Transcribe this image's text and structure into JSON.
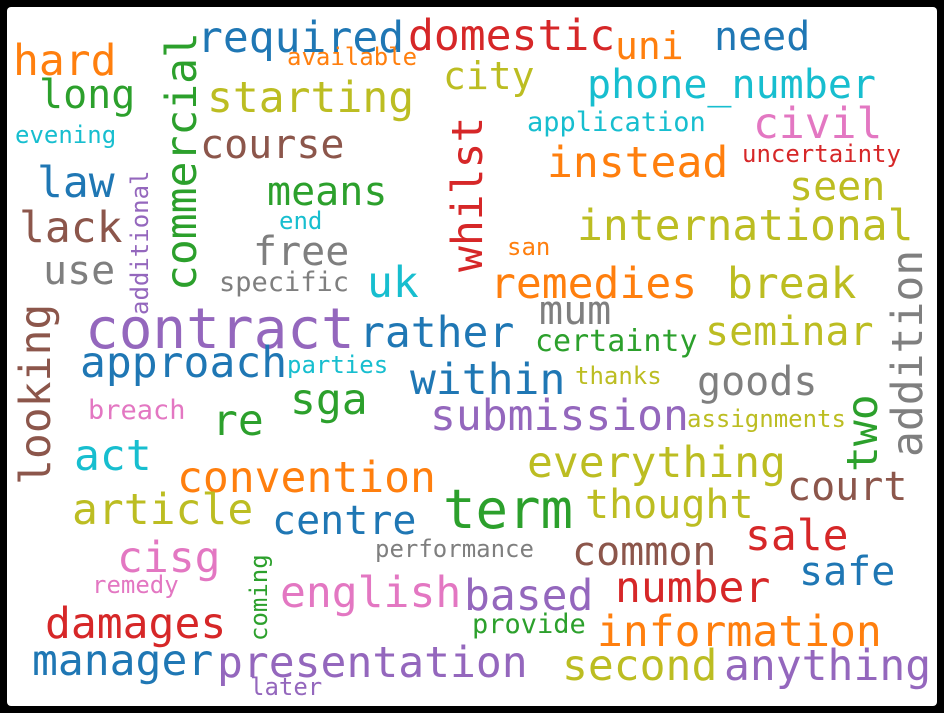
{
  "words": [
    {
      "text": "required",
      "color": "#1f77b4"
    },
    {
      "text": "domestic",
      "color": "#d62728"
    },
    {
      "text": "uni",
      "color": "#ff7f0e"
    },
    {
      "text": "need",
      "color": "#1f77b4"
    },
    {
      "text": "hard",
      "color": "#ff7f0e"
    },
    {
      "text": "available",
      "color": "#ff7f0e"
    },
    {
      "text": "city",
      "color": "#bcbd22"
    },
    {
      "text": "phone_number",
      "color": "#17becf"
    },
    {
      "text": "long",
      "color": "#2ca02c"
    },
    {
      "text": "starting",
      "color": "#bcbd22"
    },
    {
      "text": "application",
      "color": "#17becf"
    },
    {
      "text": "civil",
      "color": "#e377c2"
    },
    {
      "text": "evening",
      "color": "#17becf"
    },
    {
      "text": "course",
      "color": "#8c564b"
    },
    {
      "text": "uncertainty",
      "color": "#d62728"
    },
    {
      "text": "instead",
      "color": "#ff7f0e"
    },
    {
      "text": "law",
      "color": "#1f77b4"
    },
    {
      "text": "means",
      "color": "#2ca02c"
    },
    {
      "text": "seen",
      "color": "#bcbd22"
    },
    {
      "text": "end",
      "color": "#17becf"
    },
    {
      "text": "lack",
      "color": "#8c564b"
    },
    {
      "text": "free",
      "color": "#7f7f7f"
    },
    {
      "text": "international",
      "color": "#bcbd22"
    },
    {
      "text": "san",
      "color": "#ff7f0e"
    },
    {
      "text": "use",
      "color": "#7f7f7f"
    },
    {
      "text": "specific",
      "color": "#7f7f7f"
    },
    {
      "text": "uk",
      "color": "#17becf"
    },
    {
      "text": "remedies",
      "color": "#ff7f0e"
    },
    {
      "text": "break",
      "color": "#bcbd22"
    },
    {
      "text": "contract",
      "color": "#9467bd"
    },
    {
      "text": "mum",
      "color": "#7f7f7f"
    },
    {
      "text": "rather",
      "color": "#1f77b4"
    },
    {
      "text": "seminar",
      "color": "#bcbd22"
    },
    {
      "text": "certainty",
      "color": "#2ca02c"
    },
    {
      "text": "approach",
      "color": "#1f77b4"
    },
    {
      "text": "parties",
      "color": "#17becf"
    },
    {
      "text": "within",
      "color": "#1f77b4"
    },
    {
      "text": "thanks",
      "color": "#bcbd22"
    },
    {
      "text": "goods",
      "color": "#7f7f7f"
    },
    {
      "text": "sga",
      "color": "#2ca02c"
    },
    {
      "text": "breach",
      "color": "#e377c2"
    },
    {
      "text": "re",
      "color": "#2ca02c"
    },
    {
      "text": "submission",
      "color": "#9467bd"
    },
    {
      "text": "assignments",
      "color": "#bcbd22"
    },
    {
      "text": "act",
      "color": "#17becf"
    },
    {
      "text": "everything",
      "color": "#bcbd22"
    },
    {
      "text": "convention",
      "color": "#ff7f0e"
    },
    {
      "text": "court",
      "color": "#8c564b"
    },
    {
      "text": "article",
      "color": "#bcbd22"
    },
    {
      "text": "term",
      "color": "#2ca02c"
    },
    {
      "text": "centre",
      "color": "#1f77b4"
    },
    {
      "text": "thought",
      "color": "#bcbd22"
    },
    {
      "text": "sale",
      "color": "#d62728"
    },
    {
      "text": "cisg",
      "color": "#e377c2"
    },
    {
      "text": "performance",
      "color": "#7f7f7f"
    },
    {
      "text": "common",
      "color": "#8c564b"
    },
    {
      "text": "safe",
      "color": "#1f77b4"
    },
    {
      "text": "remedy",
      "color": "#e377c2"
    },
    {
      "text": "english",
      "color": "#e377c2"
    },
    {
      "text": "based",
      "color": "#9467bd"
    },
    {
      "text": "number",
      "color": "#d62728"
    },
    {
      "text": "damages",
      "color": "#d62728"
    },
    {
      "text": "provide",
      "color": "#2ca02c"
    },
    {
      "text": "information",
      "color": "#ff7f0e"
    },
    {
      "text": "manager",
      "color": "#1f77b4"
    },
    {
      "text": "presentation",
      "color": "#9467bd"
    },
    {
      "text": "second",
      "color": "#bcbd22"
    },
    {
      "text": "anything",
      "color": "#9467bd"
    },
    {
      "text": "later",
      "color": "#9467bd"
    },
    {
      "text": "commercial",
      "color": "#2ca02c"
    },
    {
      "text": "whilst",
      "color": "#d62728"
    },
    {
      "text": "additional",
      "color": "#9467bd"
    },
    {
      "text": "looking",
      "color": "#8c564b"
    },
    {
      "text": "addition",
      "color": "#7f7f7f"
    },
    {
      "text": "two",
      "color": "#2ca02c"
    },
    {
      "text": "coming",
      "color": "#2ca02c"
    }
  ]
}
